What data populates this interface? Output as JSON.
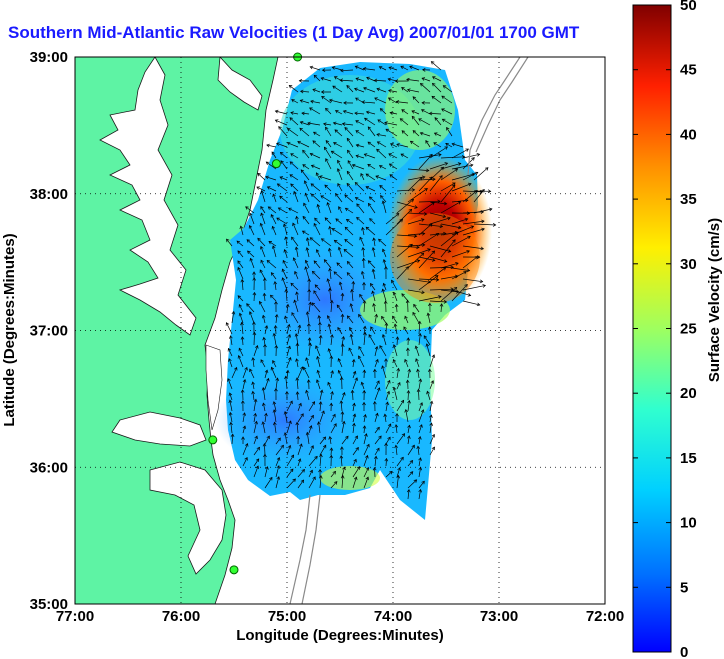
{
  "title": "Southern Mid-Atlantic Raw Velocities (1 Day Avg) 2007/01/01 1700 GMT",
  "map": {
    "xlabel": "Longitude (Degrees:Minutes)",
    "ylabel": "Latitude (Degrees:Minutes)",
    "x_ticks": [
      "77:00",
      "76:00",
      "75:00",
      "74:00",
      "73:00",
      "72:00"
    ],
    "y_ticks": [
      "39:00",
      "38:00",
      "37:00",
      "36:00",
      "35:00"
    ],
    "lon_range": [
      -77,
      -72
    ],
    "lat_range": [
      35,
      39
    ],
    "land_color": "#5ef3a4",
    "grid": "dotted"
  },
  "colorbar": {
    "label": "Surface Velocity (cm/s)",
    "ticks": [
      "0",
      "5",
      "10",
      "15",
      "20",
      "25",
      "30",
      "35",
      "40",
      "45",
      "50"
    ],
    "range": [
      0,
      50
    ],
    "colormap": "jet"
  },
  "stations": [
    {
      "lon": -74.9,
      "lat": 39.0
    },
    {
      "lon": -75.1,
      "lat": 38.22
    },
    {
      "lon": -75.7,
      "lat": 36.2
    },
    {
      "lon": -75.5,
      "lat": 35.25
    }
  ]
}
